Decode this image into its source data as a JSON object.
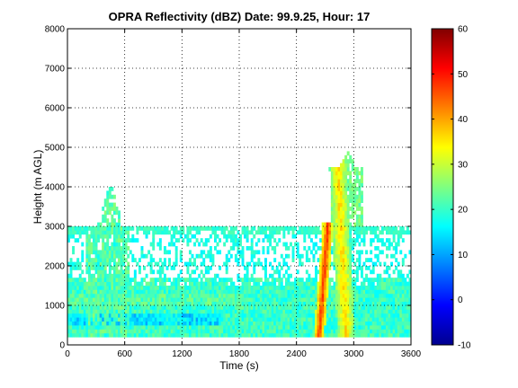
{
  "chart_data": {
    "type": "heatmap",
    "title": "OPRA Reflectivity (dBZ)  Date: 99.9.25, Hour: 17",
    "xlabel": "Time (s)",
    "ylabel": "Height (m AGL)",
    "xlim": [
      0,
      3600
    ],
    "ylim": [
      0,
      8000
    ],
    "x_ticks": [
      "0",
      "600",
      "1200",
      "1800",
      "2400",
      "3000",
      "3600"
    ],
    "y_ticks": [
      "0",
      "1000",
      "2000",
      "3000",
      "4000",
      "5000",
      "6000",
      "7000",
      "8000"
    ],
    "colorbar": {
      "range": [
        -10,
        60
      ],
      "ticks": [
        "-10",
        "0",
        "10",
        "20",
        "30",
        "40",
        "50",
        "60"
      ],
      "colormap": "jet"
    },
    "grid": true,
    "features": [
      {
        "name": "boundary layer echo",
        "time_range": [
          0,
          3600
        ],
        "height_range": [
          250,
          1700
        ],
        "dbz": 20
      },
      {
        "name": "echo layer near 3000 m",
        "time_range": [
          0,
          3600
        ],
        "height_range": [
          2800,
          3000
        ],
        "dbz": 20
      },
      {
        "name": "plume near 450 s",
        "time_range": [
          200,
          650
        ],
        "height_range": [
          0,
          4000
        ],
        "dbz": 22
      },
      {
        "name": "rain shaft 1",
        "time_range": [
          2550,
          2800
        ],
        "height_range": [
          200,
          3100
        ],
        "dbz": 45
      },
      {
        "name": "rain shaft 2",
        "time_range": [
          2800,
          3050
        ],
        "height_range": [
          200,
          4900
        ],
        "dbz": 35
      }
    ]
  }
}
